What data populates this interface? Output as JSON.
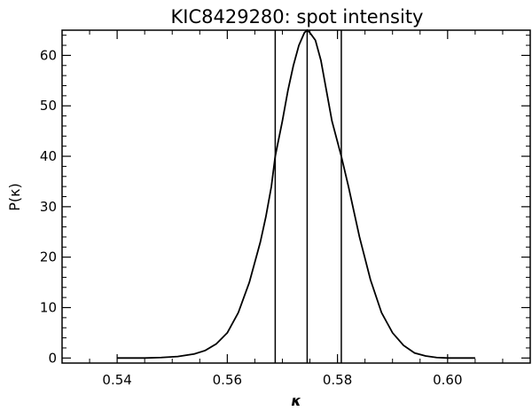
{
  "chart_data": {
    "type": "line",
    "title": "KIC8429280: spot intensity",
    "xlabel": "κ",
    "ylabel": "P(κ)",
    "xlim": [
      0.53,
      0.615
    ],
    "ylim": [
      -1,
      65
    ],
    "grid": false,
    "x_ticks": [
      0.54,
      0.56,
      0.58,
      0.6
    ],
    "x_tick_labels": [
      "0.54",
      "0.56",
      "0.58",
      "0.60"
    ],
    "y_ticks": [
      0,
      10,
      20,
      30,
      40,
      50,
      60
    ],
    "y_tick_labels": [
      "0",
      "10",
      "20",
      "30",
      "40",
      "50",
      "60"
    ],
    "series": [
      {
        "x": [
          0.54,
          0.545,
          0.548,
          0.551,
          0.554,
          0.556,
          0.558,
          0.56,
          0.562,
          0.564,
          0.566,
          0.567,
          0.568,
          0.5687,
          0.57,
          0.571,
          0.572,
          0.573,
          0.574,
          0.5745,
          0.575,
          0.576,
          0.577,
          0.578,
          0.579,
          0.5807,
          0.582,
          0.583,
          0.584,
          0.586,
          0.588,
          0.59,
          0.592,
          0.594,
          0.596,
          0.598,
          0.6,
          0.605
        ],
        "y": [
          0,
          0,
          0.1,
          0.3,
          0.8,
          1.5,
          2.8,
          5,
          9,
          15,
          23,
          28,
          34,
          40,
          47,
          53,
          58,
          62,
          64.5,
          65,
          64.5,
          63,
          59,
          53,
          47,
          40,
          34,
          29,
          24,
          15.5,
          9,
          5,
          2.5,
          1,
          0.4,
          0.1,
          0,
          0
        ]
      }
    ],
    "vertical_lines": [
      0.5687,
      0.5745,
      0.5807
    ]
  }
}
